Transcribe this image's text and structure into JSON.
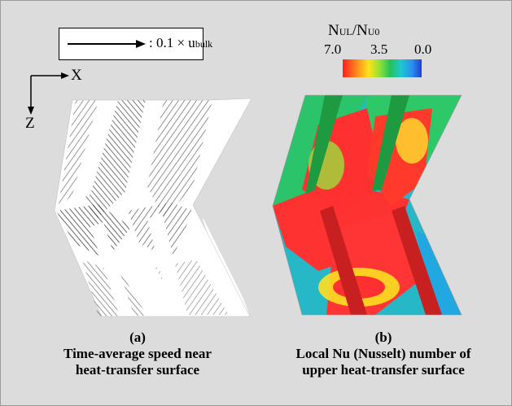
{
  "legend": {
    "prefix": ": 0.1 × u",
    "subscript": "bulk"
  },
  "axes": {
    "x": "X",
    "z": "Z"
  },
  "colorbar": {
    "title_main": "N",
    "title_sub1": "UL",
    "title_slash": "/N",
    "title_sub2": "U0",
    "ticks": [
      "7.0",
      "3.5",
      "0.0"
    ],
    "colors": [
      "#ff1e1e",
      "#ffe31a",
      "#24c25a",
      "#1ec8d0",
      "#1f3fd0"
    ]
  },
  "panel_a": {
    "label": "(a)",
    "caption_line1": "Time-average speed near",
    "caption_line2": "heat-transfer surface"
  },
  "panel_b": {
    "label": "(b)",
    "caption_line1": "Local Nu (Nusselt) number of",
    "caption_line2": "upper heat-transfer surface"
  }
}
